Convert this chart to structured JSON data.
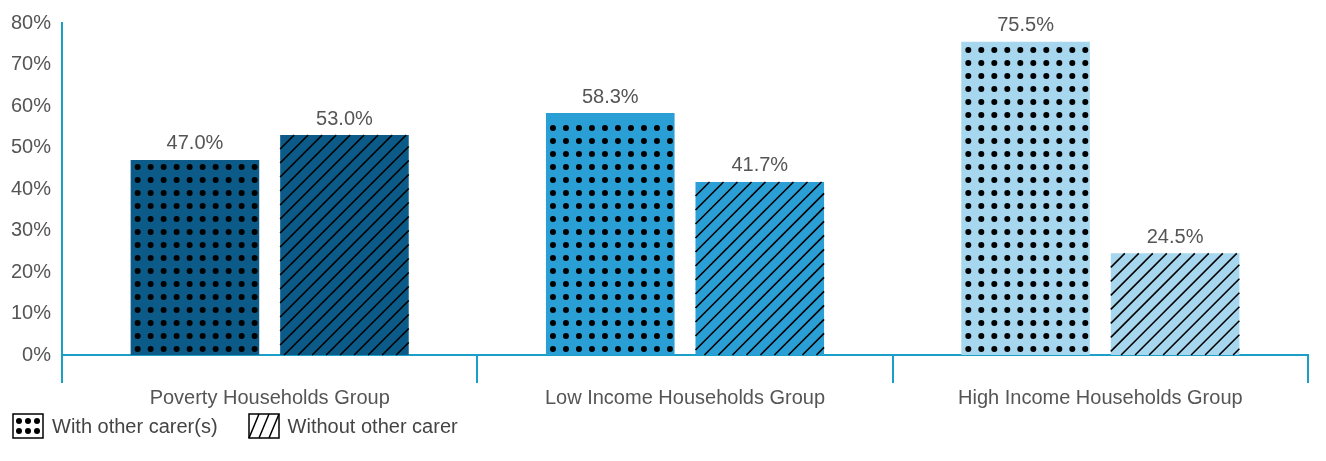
{
  "chart_data": {
    "type": "bar",
    "categories": [
      "Poverty Households Group",
      "Low Income Households Group",
      "High Income Households Group"
    ],
    "series": [
      {
        "name": "With other carer(s)",
        "colors": [
          "#0b5a87",
          "#2a9fd6",
          "#a6d7ef"
        ],
        "values": [
          47.0,
          58.3,
          75.5
        ],
        "value_labels": [
          "47.0%",
          "58.3%",
          "75.5%"
        ]
      },
      {
        "name": "Without other carer",
        "colors": [
          "#0b5a87",
          "#2a9fd6",
          "#a6d7ef"
        ],
        "values": [
          53.0,
          41.7,
          24.5
        ],
        "value_labels": [
          "53.0%",
          "41.7%",
          "24.5%"
        ]
      }
    ],
    "ylim": [
      0,
      80
    ],
    "yticks": [
      {
        "value": 0,
        "label": "0%"
      },
      {
        "value": 10,
        "label": "10%"
      },
      {
        "value": 20,
        "label": "20%"
      },
      {
        "value": 30,
        "label": "30%"
      },
      {
        "value": 40,
        "label": "40%"
      },
      {
        "value": 50,
        "label": "50%"
      },
      {
        "value": 60,
        "label": "60%"
      },
      {
        "value": 70,
        "label": "70%"
      },
      {
        "value": 80,
        "label": "80%"
      }
    ],
    "legend": "bottom left"
  }
}
